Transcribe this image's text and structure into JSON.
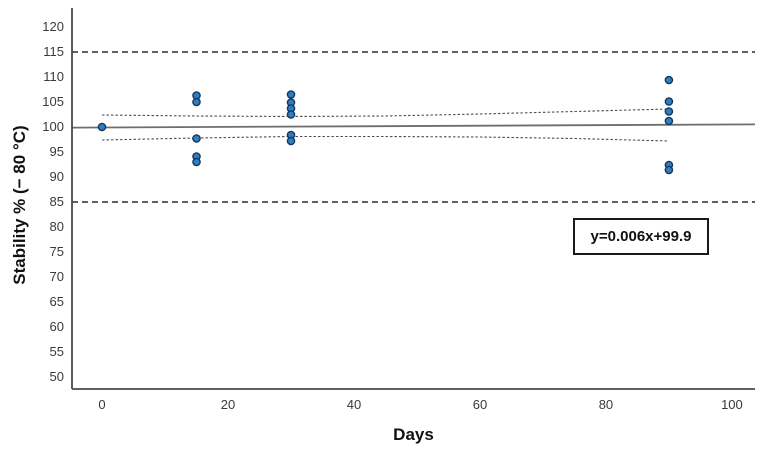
{
  "chart_data": {
    "type": "scatter",
    "title": "",
    "xlabel": "Days",
    "ylabel": "Stability % (− 80 °C)",
    "x_ticks": [
      0,
      20,
      40,
      60,
      80,
      100
    ],
    "y_ticks": [
      120,
      115,
      110,
      105,
      100,
      95,
      90,
      85,
      80,
      75,
      70,
      65,
      60,
      55,
      50
    ],
    "xlim": [
      -4.76,
      103.66
    ],
    "ylim": [
      47.6,
      123.8
    ],
    "grid": false,
    "legend": null,
    "points": [
      {
        "x": 0,
        "y": 100.0
      },
      {
        "x": 15,
        "y": 106.3
      },
      {
        "x": 15,
        "y": 105.0
      },
      {
        "x": 15,
        "y": 97.7
      },
      {
        "x": 15,
        "y": 94.1
      },
      {
        "x": 15,
        "y": 93.0
      },
      {
        "x": 30,
        "y": 106.5
      },
      {
        "x": 30,
        "y": 104.9
      },
      {
        "x": 30,
        "y": 103.7
      },
      {
        "x": 30,
        "y": 102.5
      },
      {
        "x": 30,
        "y": 98.4
      },
      {
        "x": 30,
        "y": 97.2
      },
      {
        "x": 90,
        "y": 109.4
      },
      {
        "x": 90,
        "y": 105.1
      },
      {
        "x": 90,
        "y": 103.1
      },
      {
        "x": 90,
        "y": 101.2
      },
      {
        "x": 90,
        "y": 92.4
      },
      {
        "x": 90,
        "y": 91.4
      }
    ],
    "limit_lines": [
      115,
      85
    ],
    "regression": {
      "slope": 0.006,
      "intercept": 99.9,
      "label": "y=0.006x+99.9"
    },
    "ci_upper": [
      [
        0,
        102.4
      ],
      [
        15,
        102.2
      ],
      [
        30,
        102.1
      ],
      [
        45,
        102.2
      ],
      [
        60,
        102.6
      ],
      [
        75,
        103.1
      ],
      [
        90,
        103.6
      ]
    ],
    "ci_lower": [
      [
        0,
        97.4
      ],
      [
        15,
        97.8
      ],
      [
        30,
        98.1
      ],
      [
        45,
        98.1
      ],
      [
        60,
        98.0
      ],
      [
        75,
        97.7
      ],
      [
        90,
        97.2
      ]
    ],
    "colors": {
      "point_fill": "#2e7ec1",
      "point_stroke": "#16365c",
      "axis": "#4a4a4a",
      "limit_line": "#2b2b2b",
      "regression_line": "#6e6e6e",
      "ci_line": "#4f4f4f",
      "tick_label": "#3a3a3a",
      "equation_border": "#1a1a1a"
    }
  }
}
